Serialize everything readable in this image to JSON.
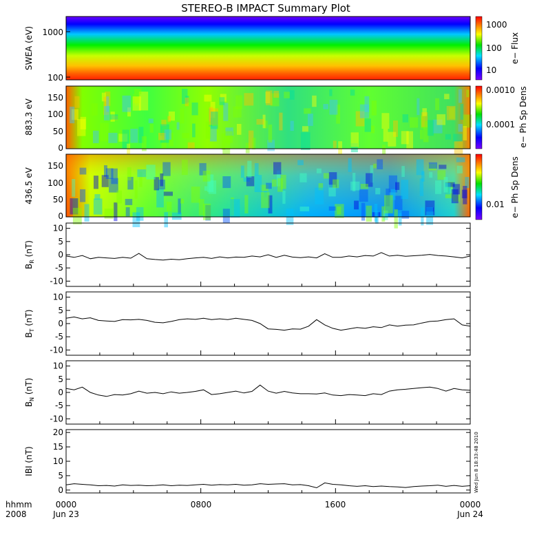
{
  "title": "STEREO-B IMPACT Summary Plot",
  "footer": {
    "left_label_1": "hhmm",
    "left_label_2": "2008",
    "x_ticks": [
      "0000",
      "0800",
      "1600",
      "0000"
    ],
    "x_dates": [
      "Jun 23",
      "",
      "",
      "Jun 24"
    ]
  },
  "timestamp": "Wed Jun  8 18:33:48 2010",
  "chart_data": [
    {
      "type": "heatmap",
      "ylabel": "SWEA (eV)",
      "y_ticks": [
        "1000",
        "100"
      ],
      "colorbar": {
        "label": "e− Flux",
        "ticks": [
          "1000",
          "100",
          "10"
        ],
        "scale": "log"
      }
    },
    {
      "type": "heatmap",
      "ylabel": "883.3 eV",
      "y_ticks": [
        "150",
        "100",
        "50",
        "0"
      ],
      "ylim": [
        0,
        180
      ],
      "colorbar": {
        "label": "e− Ph Sp Dens",
        "ticks": [
          "0.0010",
          "0.0001"
        ],
        "scale": "log"
      }
    },
    {
      "type": "heatmap",
      "ylabel": "436.5 eV",
      "y_ticks": [
        "150",
        "100",
        "50",
        "0"
      ],
      "ylim": [
        0,
        180
      ],
      "colorbar": {
        "label": "e− Ph Sp Dens",
        "ticks": [
          "0.01"
        ],
        "scale": "log"
      }
    },
    {
      "type": "line",
      "ylabel": "B_R (nT)",
      "ylabel_main": "B",
      "ylabel_sub": "R",
      "ylabel_unit": "(nT)",
      "ylim": [
        -12,
        12
      ],
      "y_ticks": [
        10,
        5,
        0,
        -5,
        -10
      ],
      "x": [
        0,
        0.02,
        0.04,
        0.06,
        0.08,
        0.1,
        0.12,
        0.14,
        0.16,
        0.18,
        0.2,
        0.22,
        0.24,
        0.26,
        0.28,
        0.3,
        0.32,
        0.34,
        0.36,
        0.38,
        0.4,
        0.42,
        0.44,
        0.46,
        0.48,
        0.5,
        0.52,
        0.54,
        0.56,
        0.58,
        0.6,
        0.62,
        0.64,
        0.66,
        0.68,
        0.7,
        0.72,
        0.74,
        0.76,
        0.78,
        0.8,
        0.82,
        0.84,
        0.86,
        0.88,
        0.9,
        0.92,
        0.94,
        0.96,
        0.98,
        1.0
      ],
      "values": [
        -0.5,
        -1,
        -0.3,
        -1.5,
        -1,
        -1.2,
        -1.4,
        -1,
        -1.3,
        0.5,
        -1.5,
        -1.8,
        -2,
        -1.7,
        -1.9,
        -1.5,
        -1.2,
        -1,
        -1.4,
        -0.8,
        -1.2,
        -0.9,
        -1,
        -0.5,
        -0.8,
        0,
        -1,
        -0.2,
        -0.9,
        -1.1,
        -0.8,
        -1.2,
        0.4,
        -1,
        -1,
        -0.5,
        -0.8,
        -0.3,
        -0.5,
        0.8,
        -0.5,
        -0.2,
        -0.6,
        -0.4,
        -0.2,
        0.1,
        -0.3,
        -0.5,
        -0.8,
        -1.2,
        -0.5
      ]
    },
    {
      "type": "line",
      "ylabel": "B_T (nT)",
      "ylabel_main": "B",
      "ylabel_sub": "T",
      "ylabel_unit": "(nT)",
      "ylim": [
        -12,
        12
      ],
      "y_ticks": [
        10,
        5,
        0,
        -5,
        -10
      ],
      "x": [
        0,
        0.02,
        0.04,
        0.06,
        0.08,
        0.1,
        0.12,
        0.14,
        0.16,
        0.18,
        0.2,
        0.22,
        0.24,
        0.26,
        0.28,
        0.3,
        0.32,
        0.34,
        0.36,
        0.38,
        0.4,
        0.42,
        0.44,
        0.46,
        0.48,
        0.5,
        0.52,
        0.54,
        0.56,
        0.58,
        0.6,
        0.62,
        0.64,
        0.66,
        0.68,
        0.7,
        0.72,
        0.74,
        0.76,
        0.78,
        0.8,
        0.82,
        0.84,
        0.86,
        0.88,
        0.9,
        0.92,
        0.94,
        0.96,
        0.98,
        1.0
      ],
      "values": [
        2,
        2.5,
        1.8,
        2.2,
        1.2,
        1,
        0.8,
        1.5,
        1.4,
        1.6,
        1.2,
        0.5,
        0.3,
        0.8,
        1.5,
        1.8,
        1.6,
        2,
        1.5,
        1.8,
        1.5,
        2,
        1.6,
        1.2,
        0,
        -2,
        -2.2,
        -2.5,
        -2,
        -2.1,
        -1,
        1.5,
        -0.5,
        -1.8,
        -2.5,
        -2,
        -1.5,
        -1.8,
        -1.2,
        -1.5,
        -0.5,
        -1,
        -0.6,
        -0.5,
        0.2,
        0.8,
        1,
        1.5,
        1.8,
        -0.5,
        -1
      ]
    },
    {
      "type": "line",
      "ylabel": "B_N (nT)",
      "ylabel_main": "B",
      "ylabel_sub": "N",
      "ylabel_unit": "(nT)",
      "ylim": [
        -12,
        12
      ],
      "y_ticks": [
        10,
        5,
        0,
        -5,
        -10
      ],
      "x": [
        0,
        0.02,
        0.04,
        0.06,
        0.08,
        0.1,
        0.12,
        0.14,
        0.16,
        0.18,
        0.2,
        0.22,
        0.24,
        0.26,
        0.28,
        0.3,
        0.32,
        0.34,
        0.36,
        0.38,
        0.4,
        0.42,
        0.44,
        0.46,
        0.48,
        0.5,
        0.52,
        0.54,
        0.56,
        0.58,
        0.6,
        0.62,
        0.64,
        0.66,
        0.68,
        0.7,
        0.72,
        0.74,
        0.76,
        0.78,
        0.8,
        0.82,
        0.84,
        0.86,
        0.88,
        0.9,
        0.92,
        0.94,
        0.96,
        0.98,
        1.0
      ],
      "values": [
        1.5,
        1,
        2,
        0,
        -1,
        -1.5,
        -0.8,
        -1,
        -0.5,
        0.5,
        -0.3,
        0,
        -0.5,
        0.2,
        -0.3,
        0,
        0.4,
        1,
        -0.8,
        -0.5,
        0,
        0.5,
        -0.2,
        0.4,
        2.8,
        0.5,
        -0.3,
        0.4,
        -0.2,
        -0.5,
        -0.5,
        -0.6,
        -0.2,
        -1,
        -1.2,
        -0.8,
        -1,
        -1.2,
        -0.5,
        -0.8,
        0.5,
        1,
        1.2,
        1.5,
        1.8,
        2,
        1.5,
        0.5,
        1.5,
        1,
        0.8
      ]
    },
    {
      "type": "line",
      "ylabel": "|B| (nT)",
      "ylabel_main": "IBI",
      "ylabel_sub": "",
      "ylabel_unit": "(nT)",
      "ylim": [
        -1,
        21
      ],
      "y_ticks": [
        20,
        15,
        10,
        5,
        0
      ],
      "x": [
        0,
        0.02,
        0.04,
        0.06,
        0.08,
        0.1,
        0.12,
        0.14,
        0.16,
        0.18,
        0.2,
        0.22,
        0.24,
        0.26,
        0.28,
        0.3,
        0.32,
        0.34,
        0.36,
        0.38,
        0.4,
        0.42,
        0.44,
        0.46,
        0.48,
        0.5,
        0.52,
        0.54,
        0.56,
        0.58,
        0.6,
        0.62,
        0.64,
        0.66,
        0.68,
        0.7,
        0.72,
        0.74,
        0.76,
        0.78,
        0.8,
        0.82,
        0.84,
        0.86,
        0.88,
        0.9,
        0.92,
        0.94,
        0.96,
        0.98,
        1.0
      ],
      "values": [
        1.8,
        2.2,
        2,
        1.8,
        1.5,
        1.6,
        1.4,
        1.8,
        1.6,
        1.7,
        1.5,
        1.6,
        1.8,
        1.5,
        1.7,
        1.6,
        1.8,
        2,
        1.7,
        1.9,
        1.8,
        2,
        1.7,
        1.8,
        2.2,
        2,
        2.1,
        2.2,
        1.8,
        1.9,
        1.5,
        0.8,
        2.5,
        2,
        1.8,
        1.5,
        1.3,
        1.5,
        1.2,
        1.4,
        1.2,
        1.1,
        0.9,
        1.2,
        1.4,
        1.5,
        1.7,
        1.3,
        1.6,
        1.3,
        1.5
      ]
    }
  ]
}
